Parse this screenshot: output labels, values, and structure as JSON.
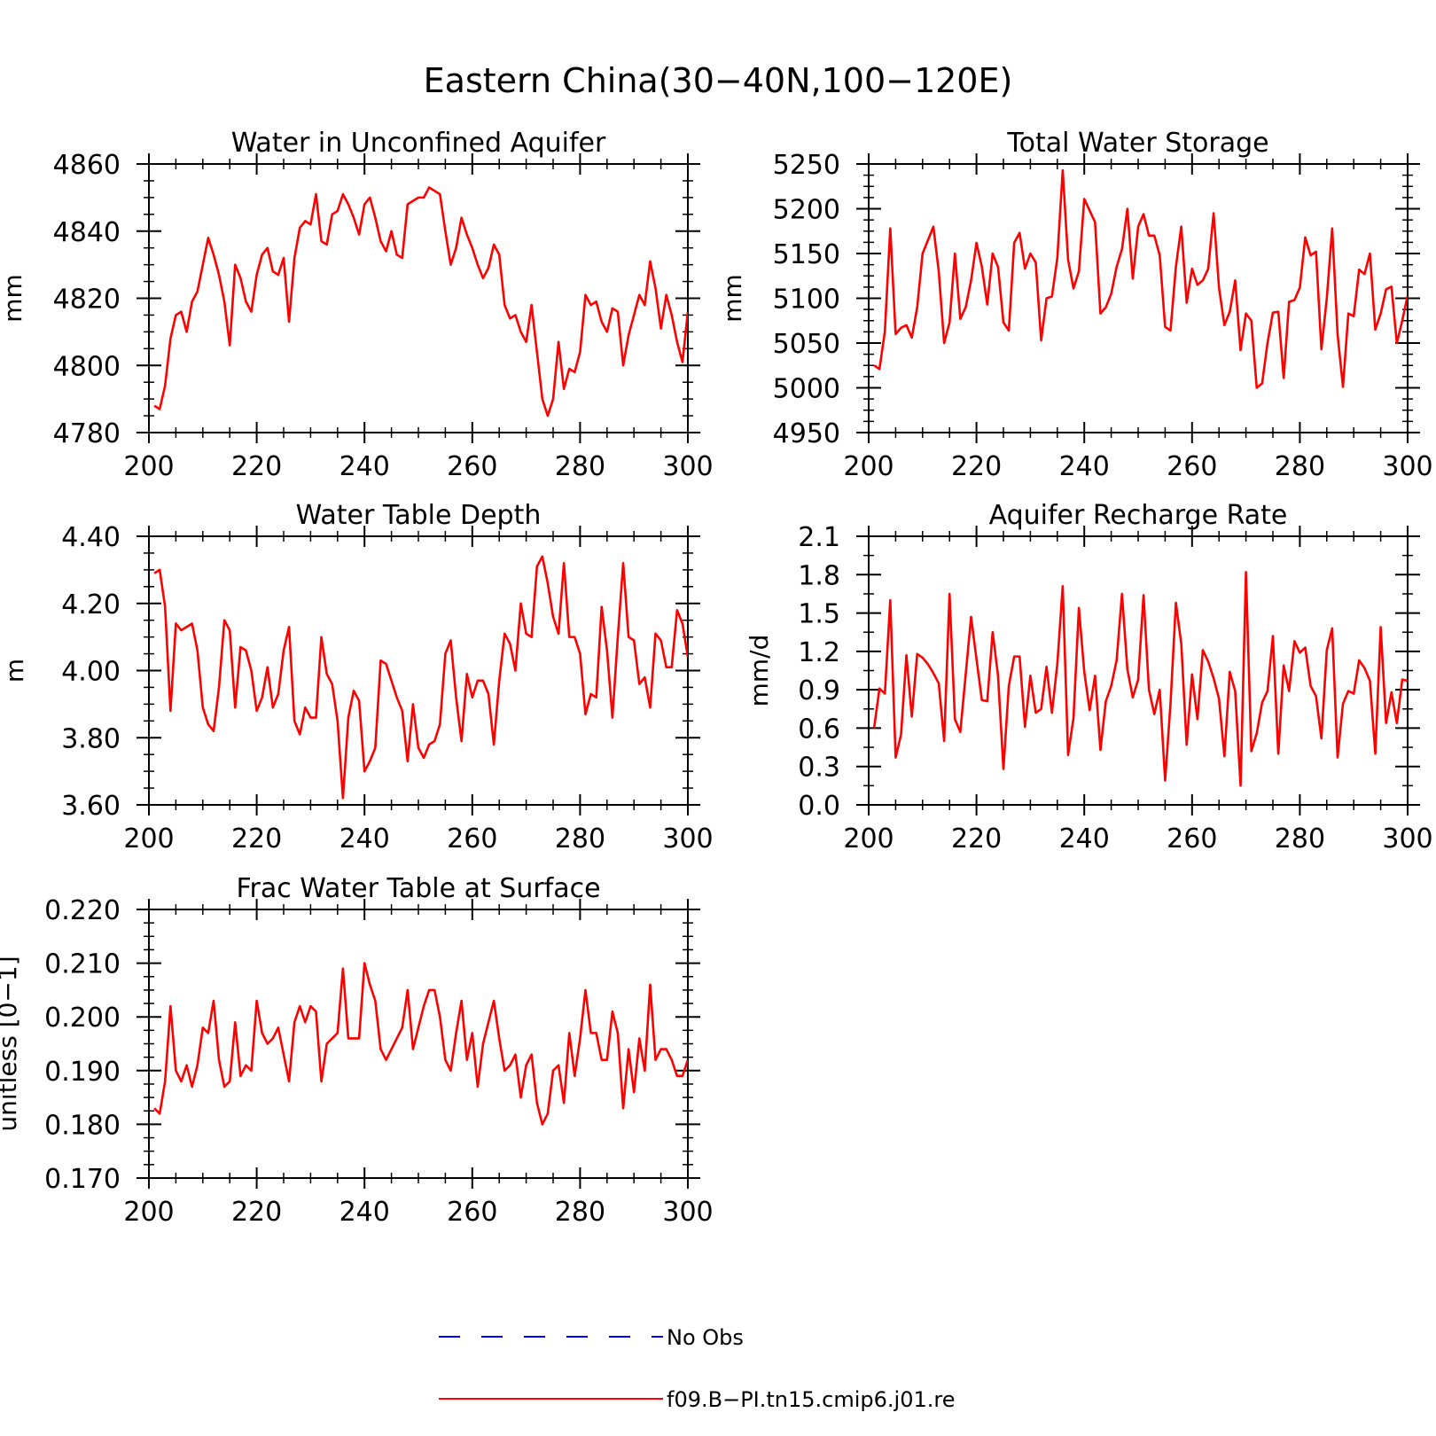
{
  "title": "Eastern China(30−40N,100−120E)",
  "colors": {
    "model": "#ff0000",
    "obs": "#0000ff",
    "axis": "#000000"
  },
  "legend": {
    "obs_label": "No Obs",
    "model_label": "f09.B−PI.tn15.cmip6.j01.re"
  },
  "chart_data": [
    {
      "type": "line",
      "title": "Water in Unconfined Aquifer",
      "ylabel": "mm",
      "xlim": [
        200,
        300
      ],
      "ylim": [
        4780,
        4860
      ],
      "xticks": [
        200,
        220,
        240,
        260,
        280,
        300
      ],
      "yticks": [
        4780,
        4800,
        4820,
        4840,
        4860
      ],
      "ytick_labels": [
        "4780",
        "4800",
        "4820",
        "4840",
        "4860"
      ],
      "yminor": 4,
      "series": [
        {
          "name": "f09.B−PI.tn15.cmip6.j01.re",
          "x_start": 201,
          "values": [
            4788,
            4787,
            4794,
            4808,
            4815,
            4816,
            4810,
            4819,
            4822,
            4830,
            4838,
            4833,
            4827,
            4819,
            4806,
            4830,
            4826,
            4819,
            4816,
            4827,
            4833,
            4835,
            4828,
            4827,
            4832,
            4813,
            4832,
            4841,
            4843,
            4842,
            4851,
            4837,
            4836,
            4845,
            4846,
            4851,
            4848,
            4844,
            4839,
            4848,
            4850,
            4844,
            4837,
            4834,
            4840,
            4833,
            4832,
            4848,
            4849,
            4850,
            4850,
            4853,
            4852,
            4851,
            4840,
            4830,
            4835,
            4844,
            4839,
            4835,
            4830,
            4826,
            4829,
            4836,
            4833,
            4818,
            4814,
            4815,
            4810,
            4807,
            4818,
            4804,
            4790,
            4785,
            4790,
            4807,
            4793,
            4799,
            4798,
            4804,
            4821,
            4818,
            4819,
            4813,
            4810,
            4817,
            4816,
            4800,
            4809,
            4815,
            4821,
            4818,
            4831,
            4823,
            4811,
            4821,
            4815,
            4807,
            4801,
            4816
          ]
        }
      ]
    },
    {
      "type": "line",
      "title": "Total Water Storage",
      "ylabel": "mm",
      "xlim": [
        200,
        300
      ],
      "ylim": [
        4950,
        5250
      ],
      "xticks": [
        200,
        220,
        240,
        260,
        280,
        300
      ],
      "yticks": [
        4950,
        5000,
        5050,
        5100,
        5150,
        5200,
        5250
      ],
      "ytick_labels": [
        "4950",
        "5000",
        "5050",
        "5100",
        "5150",
        "5200",
        "5250"
      ],
      "yminor": 4,
      "series": [
        {
          "name": "f09.B−PI.tn15.cmip6.j01.re",
          "x_start": 201,
          "values": [
            5025,
            5021,
            5063,
            5178,
            5060,
            5067,
            5070,
            5056,
            5090,
            5150,
            5165,
            5180,
            5130,
            5050,
            5073,
            5150,
            5077,
            5090,
            5120,
            5162,
            5135,
            5093,
            5150,
            5135,
            5073,
            5064,
            5162,
            5173,
            5133,
            5150,
            5140,
            5053,
            5100,
            5102,
            5145,
            5243,
            5143,
            5111,
            5130,
            5211,
            5198,
            5185,
            5083,
            5090,
            5105,
            5135,
            5155,
            5200,
            5122,
            5180,
            5194,
            5170,
            5170,
            5148,
            5068,
            5064,
            5135,
            5180,
            5095,
            5133,
            5115,
            5120,
            5133,
            5195,
            5112,
            5070,
            5085,
            5120,
            5042,
            5083,
            5075,
            5000,
            5005,
            5050,
            5084,
            5085,
            5011,
            5096,
            5098,
            5112,
            5168,
            5148,
            5152,
            5043,
            5100,
            5178,
            5060,
            5001,
            5083,
            5080,
            5132,
            5127,
            5150,
            5065,
            5083,
            5110,
            5113,
            5050,
            5075,
            5103
          ]
        }
      ]
    },
    {
      "type": "line",
      "title": "Water Table Depth",
      "ylabel": "m",
      "xlim": [
        200,
        300
      ],
      "ylim": [
        3.6,
        4.4
      ],
      "xticks": [
        200,
        220,
        240,
        260,
        280,
        300
      ],
      "yticks": [
        3.6,
        3.8,
        4.0,
        4.2,
        4.4
      ],
      "ytick_labels": [
        "3.60",
        "3.80",
        "4.00",
        "4.20",
        "4.40"
      ],
      "yminor": 4,
      "series": [
        {
          "name": "f09.B−PI.tn15.cmip6.j01.re",
          "x_start": 201,
          "values": [
            4.29,
            4.3,
            4.19,
            3.88,
            4.14,
            4.12,
            4.13,
            4.14,
            4.06,
            3.89,
            3.84,
            3.82,
            3.95,
            4.15,
            4.12,
            3.89,
            4.07,
            4.06,
            4.0,
            3.88,
            3.92,
            4.01,
            3.89,
            3.93,
            4.06,
            4.13,
            3.85,
            3.81,
            3.89,
            3.86,
            3.86,
            4.1,
            3.99,
            3.96,
            3.85,
            3.62,
            3.86,
            3.94,
            3.91,
            3.7,
            3.73,
            3.77,
            4.03,
            4.02,
            3.97,
            3.92,
            3.88,
            3.73,
            3.9,
            3.77,
            3.74,
            3.78,
            3.79,
            3.84,
            4.05,
            4.09,
            3.92,
            3.79,
            3.99,
            3.92,
            3.97,
            3.97,
            3.93,
            3.78,
            3.97,
            4.11,
            4.08,
            4.0,
            4.2,
            4.11,
            4.1,
            4.31,
            4.34,
            4.26,
            4.16,
            4.11,
            4.32,
            4.1,
            4.1,
            4.05,
            3.87,
            3.93,
            3.92,
            4.19,
            4.06,
            3.86,
            4.1,
            4.32,
            4.1,
            4.09,
            3.96,
            3.98,
            3.89,
            4.11,
            4.09,
            4.01,
            4.01,
            4.18,
            4.14,
            4.04
          ]
        }
      ]
    },
    {
      "type": "line",
      "title": "Aquifer Recharge Rate",
      "ylabel": "mm/d",
      "xlim": [
        200,
        300
      ],
      "ylim": [
        0.0,
        2.1
      ],
      "xticks": [
        200,
        220,
        240,
        260,
        280,
        300
      ],
      "yticks": [
        0.0,
        0.3,
        0.6,
        0.9,
        1.2,
        1.5,
        1.8,
        2.1
      ],
      "ytick_labels": [
        "0.0",
        "0.3",
        "0.6",
        "0.9",
        "1.2",
        "1.5",
        "1.8",
        "2.1"
      ],
      "yminor": 2,
      "series": [
        {
          "name": "f09.B−PI.tn15.cmip6.j01.re",
          "x_start": 201,
          "values": [
            0.6,
            0.91,
            0.87,
            1.6,
            0.37,
            0.55,
            1.17,
            0.69,
            1.18,
            1.15,
            1.1,
            1.03,
            0.95,
            0.5,
            1.65,
            0.67,
            0.57,
            1.02,
            1.47,
            1.14,
            0.82,
            0.81,
            1.35,
            1.01,
            0.28,
            0.93,
            1.16,
            1.16,
            0.61,
            1.01,
            0.72,
            0.75,
            1.08,
            0.72,
            1.1,
            1.71,
            0.39,
            0.68,
            1.54,
            1.04,
            0.74,
            1.01,
            0.43,
            0.81,
            0.93,
            1.13,
            1.65,
            1.06,
            0.84,
            0.98,
            1.64,
            0.9,
            0.71,
            0.9,
            0.19,
            0.79,
            1.58,
            1.26,
            0.47,
            1.02,
            0.67,
            1.21,
            1.12,
            0.99,
            0.83,
            0.38,
            1.04,
            0.89,
            0.15,
            1.82,
            0.42,
            0.56,
            0.8,
            0.89,
            1.32,
            0.4,
            1.09,
            0.89,
            1.28,
            1.19,
            1.23,
            0.93,
            0.85,
            0.52,
            1.21,
            1.38,
            0.37,
            0.79,
            0.89,
            0.87,
            1.13,
            1.07,
            0.97,
            0.4,
            1.39,
            0.64,
            0.88,
            0.64,
            0.98,
            0.97
          ]
        }
      ]
    },
    {
      "type": "line",
      "title": "Frac Water Table at Surface",
      "ylabel": "unitless [0−1]",
      "xlim": [
        200,
        300
      ],
      "ylim": [
        0.17,
        0.22
      ],
      "xticks": [
        200,
        220,
        240,
        260,
        280,
        300
      ],
      "yticks": [
        0.17,
        0.18,
        0.19,
        0.2,
        0.21,
        0.22
      ],
      "ytick_labels": [
        "0.170",
        "0.180",
        "0.190",
        "0.200",
        "0.210",
        "0.220"
      ],
      "yminor": 4,
      "series": [
        {
          "name": "f09.B−PI.tn15.cmip6.j01.re",
          "x_start": 201,
          "values": [
            0.183,
            0.182,
            0.188,
            0.202,
            0.19,
            0.188,
            0.191,
            0.187,
            0.191,
            0.198,
            0.197,
            0.203,
            0.192,
            0.187,
            0.188,
            0.199,
            0.189,
            0.191,
            0.19,
            0.203,
            0.197,
            0.195,
            0.196,
            0.198,
            0.193,
            0.188,
            0.199,
            0.202,
            0.199,
            0.202,
            0.201,
            0.188,
            0.195,
            0.196,
            0.197,
            0.209,
            0.196,
            0.196,
            0.196,
            0.21,
            0.206,
            0.203,
            0.194,
            0.192,
            0.194,
            0.196,
            0.198,
            0.205,
            0.194,
            0.198,
            0.202,
            0.205,
            0.205,
            0.2,
            0.192,
            0.19,
            0.197,
            0.203,
            0.192,
            0.197,
            0.187,
            0.195,
            0.199,
            0.203,
            0.196,
            0.19,
            0.191,
            0.193,
            0.185,
            0.191,
            0.193,
            0.184,
            0.18,
            0.182,
            0.19,
            0.191,
            0.184,
            0.197,
            0.189,
            0.196,
            0.205,
            0.197,
            0.197,
            0.192,
            0.192,
            0.201,
            0.197,
            0.183,
            0.194,
            0.186,
            0.196,
            0.19,
            0.206,
            0.192,
            0.194,
            0.194,
            0.192,
            0.189,
            0.189,
            0.192
          ]
        }
      ]
    }
  ]
}
